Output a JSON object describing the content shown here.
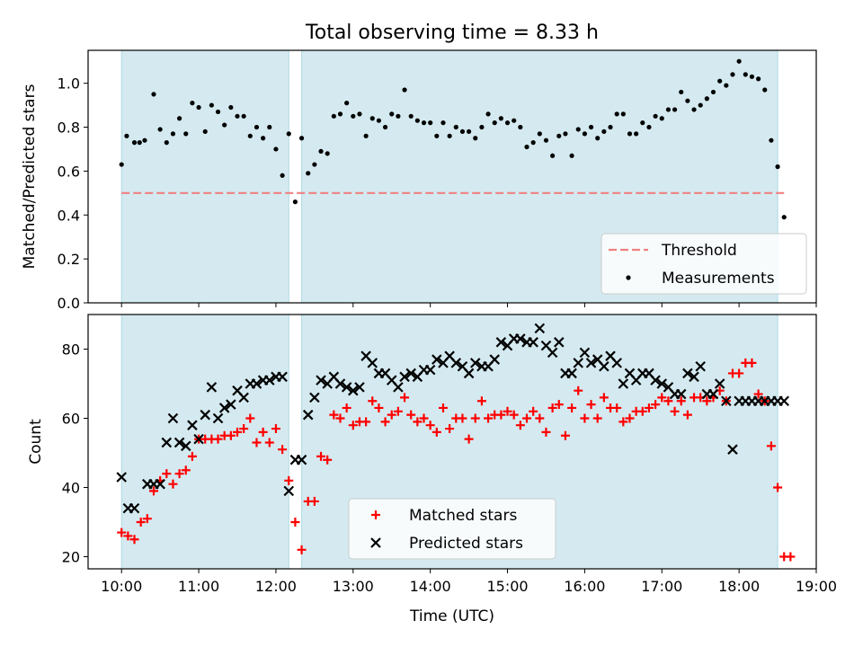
{
  "figure": {
    "title": "Total observing time = 8.33 h",
    "xlabel": "Time (UTC)"
  },
  "colors": {
    "band": "#d4eaf0",
    "band_edge": "#add8e6",
    "threshold": "#f08080",
    "measurements": "#000000",
    "matched": "#ff0000",
    "predicted": "#000000"
  },
  "chart_data": [
    {
      "type": "scatter",
      "ylabel": "Matched/Predicted stars",
      "xlim": [
        "09:34",
        "19:00"
      ],
      "ylim": [
        0,
        1.15
      ],
      "x_ticks": [
        "10:00",
        "11:00",
        "12:00",
        "13:00",
        "14:00",
        "15:00",
        "16:00",
        "17:00",
        "18:00",
        "19:00"
      ],
      "y_ticks": [
        "0.0",
        "0.2",
        "0.4",
        "0.6",
        "0.8",
        "1.0"
      ],
      "observing_windows": [
        [
          "10:00",
          "12:10"
        ],
        [
          "12:20",
          "18:30"
        ]
      ],
      "threshold": 0.5,
      "legend": {
        "position": "lower right",
        "entries": [
          "Threshold",
          "Measurements"
        ]
      },
      "series": [
        {
          "name": "Measurements",
          "marker": "dot",
          "x": [
            "10:00",
            "10:04",
            "10:10",
            "10:14",
            "10:18",
            "10:25",
            "10:30",
            "10:35",
            "10:40",
            "10:45",
            "10:50",
            "10:55",
            "11:00",
            "11:05",
            "11:10",
            "11:15",
            "11:20",
            "11:25",
            "11:30",
            "11:35",
            "11:40",
            "11:45",
            "11:50",
            "11:55",
            "12:00",
            "12:05",
            "12:10",
            "12:15",
            "12:20",
            "12:25",
            "12:30",
            "12:35",
            "12:40",
            "12:45",
            "12:50",
            "12:55",
            "13:00",
            "13:05",
            "13:10",
            "13:15",
            "13:20",
            "13:25",
            "13:30",
            "13:35",
            "13:40",
            "13:45",
            "13:50",
            "13:55",
            "14:00",
            "14:05",
            "14:10",
            "14:15",
            "14:20",
            "14:25",
            "14:30",
            "14:35",
            "14:40",
            "14:45",
            "14:50",
            "14:55",
            "15:00",
            "15:05",
            "15:10",
            "15:15",
            "15:20",
            "15:25",
            "15:30",
            "15:35",
            "15:40",
            "15:45",
            "15:50",
            "15:55",
            "16:00",
            "16:05",
            "16:10",
            "16:15",
            "16:20",
            "16:25",
            "16:30",
            "16:35",
            "16:40",
            "16:45",
            "16:50",
            "16:55",
            "17:00",
            "17:05",
            "17:10",
            "17:15",
            "17:20",
            "17:25",
            "17:30",
            "17:35",
            "17:40",
            "17:45",
            "17:50",
            "17:55",
            "18:00",
            "18:05",
            "18:10",
            "18:15",
            "18:20",
            "18:25",
            "18:30",
            "18:35"
          ],
          "y": [
            0.63,
            0.76,
            0.73,
            0.73,
            0.74,
            0.95,
            0.79,
            0.73,
            0.77,
            0.84,
            0.77,
            0.91,
            0.89,
            0.78,
            0.9,
            0.87,
            0.81,
            0.89,
            0.85,
            0.85,
            0.76,
            0.8,
            0.75,
            0.8,
            0.7,
            0.58,
            0.77,
            0.46,
            0.75,
            0.59,
            0.63,
            0.69,
            0.68,
            0.85,
            0.86,
            0.91,
            0.85,
            0.86,
            0.76,
            0.84,
            0.83,
            0.8,
            0.86,
            0.85,
            0.97,
            0.85,
            0.83,
            0.82,
            0.82,
            0.76,
            0.82,
            0.76,
            0.8,
            0.78,
            0.78,
            0.75,
            0.8,
            0.86,
            0.82,
            0.84,
            0.82,
            0.83,
            0.8,
            0.71,
            0.73,
            0.77,
            0.74,
            0.67,
            0.76,
            0.77,
            0.67,
            0.79,
            0.77,
            0.8,
            0.75,
            0.78,
            0.8,
            0.86,
            0.86,
            0.77,
            0.77,
            0.82,
            0.8,
            0.85,
            0.84,
            0.88,
            0.88,
            0.96,
            0.92,
            0.88,
            0.9,
            0.93,
            0.96,
            1.01,
            0.99,
            1.04,
            1.1,
            1.04,
            1.03,
            1.02,
            0.97,
            0.74,
            0.62,
            0.39
          ]
        }
      ]
    },
    {
      "type": "scatter",
      "ylabel": "Count",
      "xlim": [
        "09:34",
        "19:00"
      ],
      "ylim": [
        16.5,
        90
      ],
      "x_ticks": [
        "10:00",
        "11:00",
        "12:00",
        "13:00",
        "14:00",
        "15:00",
        "16:00",
        "17:00",
        "18:00",
        "19:00"
      ],
      "y_ticks": [
        "20",
        "40",
        "60",
        "80"
      ],
      "observing_windows": [
        [
          "10:00",
          "12:10"
        ],
        [
          "12:20",
          "18:30"
        ]
      ],
      "legend": {
        "position": "lower center",
        "entries": [
          "Matched stars",
          "Predicted stars"
        ]
      },
      "series": [
        {
          "name": "Matched stars",
          "marker": "plus",
          "x": [
            "10:00",
            "10:05",
            "10:10",
            "10:15",
            "10:20",
            "10:25",
            "10:30",
            "10:35",
            "10:40",
            "10:45",
            "10:50",
            "10:55",
            "11:00",
            "11:05",
            "11:10",
            "11:15",
            "11:20",
            "11:25",
            "11:30",
            "11:35",
            "11:40",
            "11:45",
            "11:50",
            "11:55",
            "12:00",
            "12:05",
            "12:10",
            "12:15",
            "12:20",
            "12:25",
            "12:30",
            "12:35",
            "12:40",
            "12:45",
            "12:50",
            "12:55",
            "13:00",
            "13:05",
            "13:10",
            "13:15",
            "13:20",
            "13:25",
            "13:30",
            "13:35",
            "13:40",
            "13:45",
            "13:50",
            "13:55",
            "14:00",
            "14:05",
            "14:10",
            "14:15",
            "14:20",
            "14:25",
            "14:30",
            "14:35",
            "14:40",
            "14:45",
            "14:50",
            "14:55",
            "15:00",
            "15:05",
            "15:10",
            "15:15",
            "15:20",
            "15:25",
            "15:30",
            "15:35",
            "15:40",
            "15:45",
            "15:50",
            "15:55",
            "16:00",
            "16:05",
            "16:10",
            "16:15",
            "16:20",
            "16:25",
            "16:30",
            "16:35",
            "16:40",
            "16:45",
            "16:50",
            "16:55",
            "17:00",
            "17:05",
            "17:10",
            "17:15",
            "17:20",
            "17:25",
            "17:30",
            "17:35",
            "17:40",
            "17:45",
            "17:50",
            "17:55",
            "18:00",
            "18:05",
            "18:10",
            "18:15",
            "18:20",
            "18:25",
            "18:30",
            "18:35",
            "18:40"
          ],
          "y": [
            27,
            26,
            25,
            30,
            31,
            39,
            42,
            44,
            41,
            44,
            45,
            49,
            54,
            54,
            54,
            54,
            55,
            55,
            56,
            57,
            60,
            53,
            56,
            53,
            57,
            51,
            42,
            30,
            22,
            36,
            36,
            49,
            48,
            61,
            60,
            63,
            58,
            59,
            59,
            65,
            63,
            59,
            61,
            62,
            66,
            61,
            59,
            60,
            58,
            56,
            63,
            57,
            60,
            60,
            54,
            60,
            65,
            60,
            61,
            61,
            62,
            61,
            58,
            60,
            62,
            60,
            56,
            63,
            64,
            55,
            63,
            68,
            60,
            64,
            60,
            66,
            63,
            63,
            59,
            60,
            62,
            62,
            63,
            64,
            66,
            65,
            62,
            65,
            61,
            66,
            66,
            65,
            66,
            68,
            65,
            73,
            73,
            76,
            76,
            67,
            65,
            52,
            40,
            20,
            20
          ]
        },
        {
          "name": "Predicted stars",
          "marker": "x",
          "x": [
            "10:00",
            "10:05",
            "10:10",
            "10:20",
            "10:25",
            "10:30",
            "10:35",
            "10:40",
            "10:45",
            "10:50",
            "10:55",
            "11:00",
            "11:05",
            "11:10",
            "11:15",
            "11:20",
            "11:25",
            "11:30",
            "11:35",
            "11:40",
            "11:45",
            "11:50",
            "11:55",
            "12:00",
            "12:05",
            "12:10",
            "12:15",
            "12:20",
            "12:25",
            "12:30",
            "12:35",
            "12:40",
            "12:45",
            "12:50",
            "12:55",
            "13:00",
            "13:05",
            "13:10",
            "13:15",
            "13:20",
            "13:25",
            "13:30",
            "13:35",
            "13:40",
            "13:45",
            "13:50",
            "13:55",
            "14:00",
            "14:05",
            "14:10",
            "14:15",
            "14:20",
            "14:25",
            "14:30",
            "14:35",
            "14:40",
            "14:45",
            "14:50",
            "14:55",
            "15:00",
            "15:05",
            "15:10",
            "15:15",
            "15:20",
            "15:25",
            "15:30",
            "15:35",
            "15:40",
            "15:45",
            "15:50",
            "15:55",
            "16:00",
            "16:05",
            "16:10",
            "16:15",
            "16:20",
            "16:25",
            "16:30",
            "16:35",
            "16:40",
            "16:45",
            "16:50",
            "16:55",
            "17:00",
            "17:05",
            "17:10",
            "17:15",
            "17:20",
            "17:25",
            "17:30",
            "17:35",
            "17:40",
            "17:45",
            "17:50",
            "17:55",
            "18:00",
            "18:05",
            "18:10",
            "18:15",
            "18:20",
            "18:25",
            "18:30",
            "18:35"
          ],
          "y": [
            43,
            34,
            34,
            41,
            41,
            41,
            53,
            60,
            53,
            52,
            58,
            54,
            61,
            69,
            60,
            63,
            64,
            68,
            66,
            70,
            70,
            71,
            71,
            72,
            72,
            39,
            48,
            48,
            61,
            66,
            71,
            70,
            72,
            70,
            69,
            68,
            69,
            78,
            76,
            73,
            73,
            71,
            69,
            72,
            73,
            72,
            74,
            74,
            77,
            76,
            78,
            76,
            75,
            73,
            76,
            75,
            75,
            77,
            82,
            81,
            83,
            83,
            82,
            82,
            86,
            81,
            79,
            82,
            73,
            73,
            76,
            79,
            76,
            77,
            75,
            78,
            76,
            70,
            73,
            71,
            73,
            73,
            71,
            70,
            69,
            67,
            67,
            73,
            72,
            75,
            67,
            67,
            70,
            65,
            51,
            65,
            65,
            65,
            65,
            65,
            65,
            65,
            65
          ]
        }
      ]
    }
  ]
}
